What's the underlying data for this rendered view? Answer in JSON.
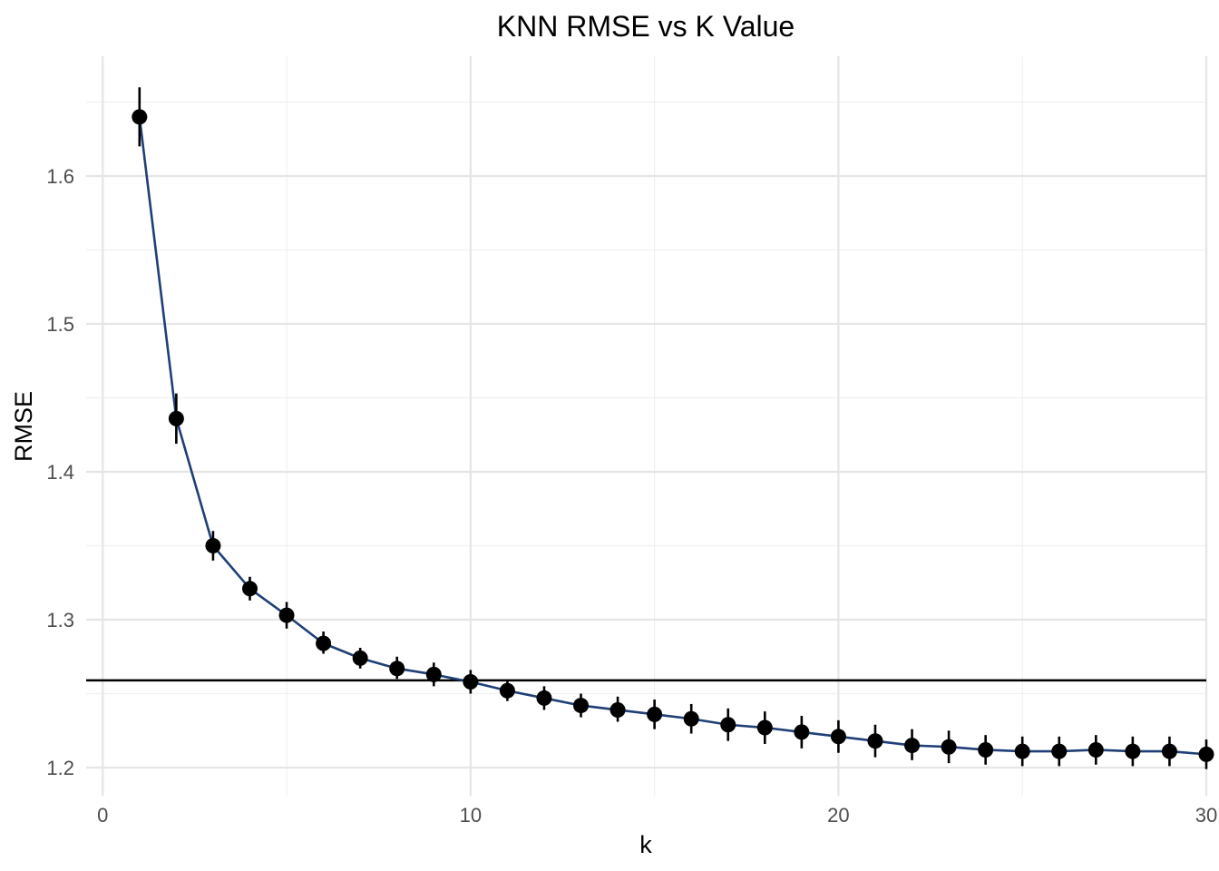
{
  "chart_data": {
    "type": "line",
    "title": "KNN RMSE vs K Value",
    "xlabel": "k",
    "ylabel": "RMSE",
    "xlim": [
      -0.45,
      30.0
    ],
    "ylim": [
      1.181,
      1.681
    ],
    "x_ticks": [
      0,
      10,
      20,
      30
    ],
    "y_ticks": [
      1.2,
      1.3,
      1.4,
      1.5,
      1.6
    ],
    "x_minor_ticks": [
      5,
      15,
      25
    ],
    "y_minor_ticks": [
      1.25,
      1.35,
      1.45,
      1.55,
      1.65
    ],
    "grid": true,
    "reference_line_y": 1.259,
    "line_color": "#1f3f76",
    "point_color": "#000000",
    "series": [
      {
        "x": [
          1,
          2,
          3,
          4,
          5,
          6,
          7,
          8,
          9,
          10,
          11,
          12,
          13,
          14,
          15,
          16,
          17,
          18,
          19,
          20,
          21,
          22,
          23,
          24,
          25,
          26,
          27,
          28,
          29,
          30
        ],
        "y": [
          1.64,
          1.436,
          1.35,
          1.321,
          1.303,
          1.284,
          1.274,
          1.267,
          1.263,
          1.258,
          1.252,
          1.247,
          1.242,
          1.239,
          1.236,
          1.233,
          1.229,
          1.227,
          1.224,
          1.221,
          1.218,
          1.215,
          1.214,
          1.212,
          1.211,
          1.211,
          1.212,
          1.211,
          1.211,
          1.209
        ],
        "err_low": [
          1.62,
          1.419,
          1.34,
          1.313,
          1.294,
          1.277,
          1.267,
          1.26,
          1.255,
          1.25,
          1.245,
          1.239,
          1.234,
          1.231,
          1.226,
          1.223,
          1.218,
          1.216,
          1.213,
          1.21,
          1.207,
          1.205,
          1.203,
          1.202,
          1.201,
          1.201,
          1.202,
          1.201,
          1.201,
          1.199
        ],
        "err_high": [
          1.66,
          1.453,
          1.36,
          1.329,
          1.312,
          1.292,
          1.281,
          1.275,
          1.271,
          1.266,
          1.259,
          1.255,
          1.25,
          1.248,
          1.246,
          1.243,
          1.24,
          1.238,
          1.235,
          1.232,
          1.229,
          1.226,
          1.225,
          1.222,
          1.221,
          1.221,
          1.222,
          1.221,
          1.221,
          1.219
        ]
      }
    ]
  }
}
